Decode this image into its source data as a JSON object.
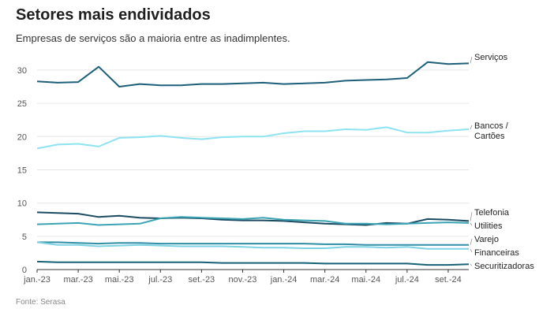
{
  "header": {
    "title": "Setores mais endividados",
    "subtitle": "Empresas de serviços são a maioria entre as inadimplentes."
  },
  "footer": {
    "source": "Fonte: Serasa"
  },
  "chart_data": {
    "type": "line",
    "title": "Setores mais endividados",
    "subtitle": "Empresas de serviços são a maioria entre as inadimplentes.",
    "xlabel": "",
    "ylabel": "",
    "ylim": [
      0,
      32
    ],
    "yticks": [
      0,
      5,
      10,
      15,
      20,
      25,
      30
    ],
    "grid": true,
    "legend": "labels at right end of lines",
    "x": [
      "jan.-23",
      "fev.-23",
      "mar.-23",
      "abr.-23",
      "mai.-23",
      "jun.-23",
      "jul.-23",
      "ago.-23",
      "set.-23",
      "out.-23",
      "nov.-23",
      "dez.-23",
      "jan.-24",
      "fev.-24",
      "mar.-24",
      "abr.-24",
      "mai.-24",
      "jun.-24",
      "jul.-24",
      "ago.-24",
      "set.-24",
      "out.-24"
    ],
    "xtick_labels": [
      "jan.-23",
      "mar.-23",
      "mai.-23",
      "jul.-23",
      "set.-23",
      "nov.-23",
      "jan.-24",
      "mar.-24",
      "mai.-24",
      "jul.-24",
      "set.-24"
    ],
    "series": [
      {
        "name": "Serviços",
        "color": "#1d5f7a",
        "label_lines": [
          "Serviços"
        ],
        "values": [
          28.3,
          28.1,
          28.2,
          30.5,
          27.5,
          27.9,
          27.7,
          27.7,
          27.9,
          27.9,
          28.0,
          28.1,
          27.9,
          28.0,
          28.1,
          28.4,
          28.5,
          28.6,
          28.8,
          31.2,
          30.9,
          31.0
        ]
      },
      {
        "name": "Bancos / Cartões",
        "color": "#8de3f2",
        "label_lines": [
          "Bancos /",
          "Cartões"
        ],
        "values": [
          18.2,
          18.8,
          18.9,
          18.5,
          19.8,
          19.9,
          20.1,
          19.8,
          19.6,
          19.9,
          20.0,
          20.0,
          20.5,
          20.8,
          20.8,
          21.1,
          21.0,
          21.4,
          20.6,
          20.6,
          20.9,
          21.1
        ]
      },
      {
        "name": "Telefonia",
        "color": "#1a4b63",
        "label_lines": [
          "Telefonia"
        ],
        "values": [
          8.6,
          8.5,
          8.4,
          7.9,
          8.1,
          7.8,
          7.7,
          7.8,
          7.7,
          7.5,
          7.4,
          7.4,
          7.3,
          7.1,
          6.9,
          6.8,
          6.7,
          7.0,
          6.9,
          7.6,
          7.5,
          7.3
        ]
      },
      {
        "name": "Utilities",
        "color": "#3aa3b4",
        "label_lines": [
          "Utilities"
        ],
        "values": [
          6.8,
          6.9,
          7.0,
          6.7,
          6.8,
          6.9,
          7.7,
          7.9,
          7.8,
          7.7,
          7.6,
          7.8,
          7.5,
          7.4,
          7.3,
          6.9,
          6.9,
          6.8,
          6.9,
          7.0,
          7.1,
          7.0
        ]
      },
      {
        "name": "Varejo",
        "color": "#2f8ea5",
        "label_lines": [
          "Varejo"
        ],
        "values": [
          4.1,
          4.1,
          4.0,
          3.9,
          4.0,
          4.0,
          3.9,
          3.9,
          3.9,
          3.9,
          3.9,
          3.9,
          3.9,
          3.9,
          3.8,
          3.8,
          3.7,
          3.7,
          3.7,
          3.7,
          3.7,
          3.7
        ]
      },
      {
        "name": "Financeiras",
        "color": "#7dd2e3",
        "label_lines": [
          "Financeiras"
        ],
        "values": [
          4.1,
          3.7,
          3.7,
          3.5,
          3.6,
          3.7,
          3.6,
          3.5,
          3.5,
          3.5,
          3.4,
          3.3,
          3.3,
          3.2,
          3.2,
          3.4,
          3.4,
          3.3,
          3.4,
          3.1,
          3.1,
          3.1
        ]
      },
      {
        "name": "Securitizadoras",
        "color": "#176078",
        "label_lines": [
          "Securitizadoras"
        ],
        "values": [
          1.2,
          1.1,
          1.1,
          1.1,
          1.1,
          1.1,
          1.1,
          1.1,
          1.1,
          1.0,
          1.0,
          1.0,
          1.0,
          1.0,
          0.9,
          0.9,
          0.9,
          0.9,
          0.9,
          0.7,
          0.7,
          0.8
        ]
      }
    ]
  }
}
